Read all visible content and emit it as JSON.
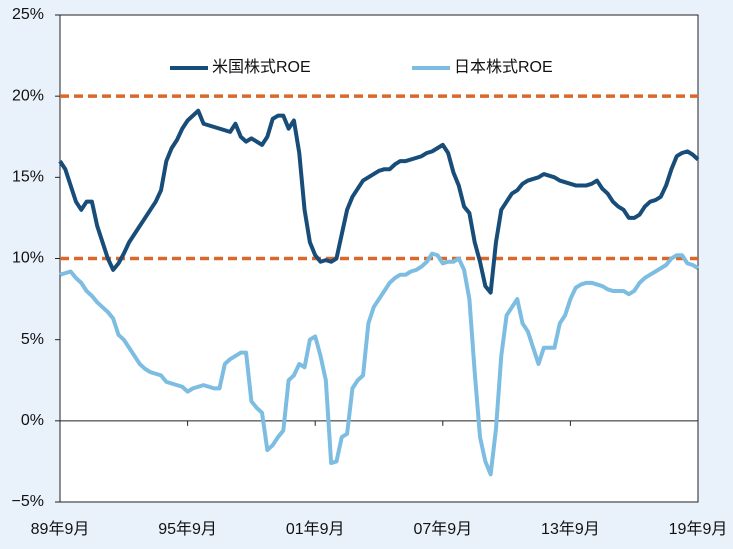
{
  "chart_data": {
    "type": "line",
    "categories": [
      "89年9月",
      null,
      null,
      null,
      null,
      null,
      null,
      null,
      null,
      null,
      null,
      null,
      null,
      null,
      null,
      null,
      null,
      null,
      null,
      null,
      null,
      null,
      null,
      null,
      "95年9月",
      null,
      null,
      null,
      null,
      null,
      null,
      null,
      null,
      null,
      null,
      null,
      null,
      null,
      null,
      null,
      null,
      null,
      null,
      null,
      null,
      null,
      null,
      null,
      "01年9月",
      null,
      null,
      null,
      null,
      null,
      null,
      null,
      null,
      null,
      null,
      null,
      null,
      null,
      null,
      null,
      null,
      null,
      null,
      null,
      null,
      null,
      null,
      null,
      "07年9月",
      null,
      null,
      null,
      null,
      null,
      null,
      null,
      null,
      null,
      null,
      null,
      null,
      null,
      null,
      null,
      null,
      null,
      null,
      null,
      null,
      null,
      null,
      null,
      "13年9月",
      null,
      null,
      null,
      null,
      null,
      null,
      null,
      null,
      null,
      null,
      null,
      null,
      null,
      null,
      null,
      null,
      null,
      null,
      null,
      null,
      null,
      null,
      null,
      "19年9月"
    ],
    "series": [
      {
        "name": "米国株式ROE",
        "color": "#174d78",
        "values": [
          16,
          15.5,
          14.5,
          13.5,
          13,
          13.5,
          13.5,
          12,
          11,
          10,
          9.3,
          9.7,
          10.3,
          11,
          11.5,
          12,
          12.5,
          13,
          13.5,
          14.2,
          16,
          16.8,
          17.3,
          18,
          18.5,
          18.8,
          19.1,
          18.3,
          18.2,
          18.1,
          18,
          17.9,
          17.8,
          18.3,
          17.5,
          17.2,
          17.4,
          17.2,
          17,
          17.5,
          18.6,
          18.8,
          18.8,
          18,
          18.5,
          16.5,
          13,
          11,
          10.2,
          9.8,
          9.9,
          9.8,
          10,
          11.5,
          13,
          13.8,
          14.3,
          14.8,
          15,
          15.2,
          15.4,
          15.5,
          15.5,
          15.8,
          16,
          16,
          16.1,
          16.2,
          16.3,
          16.5,
          16.6,
          16.8,
          17,
          16.5,
          15.3,
          14.5,
          13.2,
          12.8,
          11,
          9.8,
          8.3,
          7.9,
          11,
          13,
          13.5,
          14,
          14.2,
          14.6,
          14.8,
          14.9,
          15,
          15.2,
          15.1,
          15,
          14.8,
          14.7,
          14.6,
          14.5,
          14.5,
          14.5,
          14.6,
          14.8,
          14.3,
          14,
          13.5,
          13.2,
          13,
          12.5,
          12.5,
          12.7,
          13.2,
          13.5,
          13.6,
          13.8,
          14.5,
          15.5,
          16.3,
          16.5,
          16.6,
          16.4,
          16.1
        ]
      },
      {
        "name": "日本株式ROE",
        "color": "#7dbde1",
        "values": [
          9,
          9.1,
          9.2,
          8.8,
          8.5,
          8,
          7.7,
          7.3,
          7,
          6.7,
          6.3,
          5.3,
          5,
          4.5,
          4,
          3.5,
          3.2,
          3,
          2.9,
          2.8,
          2.4,
          2.3,
          2.2,
          2.1,
          1.8,
          2,
          2.1,
          2.2,
          2.1,
          2,
          2,
          3.5,
          3.8,
          4,
          4.2,
          4.2,
          1.2,
          0.8,
          0.5,
          -1.8,
          -1.5,
          -1,
          -0.6,
          2.5,
          2.8,
          3.5,
          3.3,
          5,
          5.2,
          4,
          2.5,
          -2.6,
          -2.5,
          -1,
          -0.8,
          2,
          2.5,
          2.8,
          6,
          7,
          7.5,
          8,
          8.5,
          8.8,
          9,
          9,
          9.2,
          9.3,
          9.5,
          9.8,
          10.3,
          10.2,
          9.7,
          9.8,
          9.8,
          10,
          9.3,
          7.5,
          3,
          -1,
          -2.5,
          -3.3,
          -0.5,
          4,
          6.5,
          7,
          7.5,
          6,
          5.5,
          4.5,
          3.5,
          4.5,
          4.5,
          4.5,
          6,
          6.5,
          7.5,
          8.2,
          8.4,
          8.5,
          8.5,
          8.4,
          8.3,
          8.1,
          8,
          8,
          8,
          7.8,
          8,
          8.5,
          8.8,
          9,
          9.2,
          9.4,
          9.6,
          10,
          10.2,
          10.2,
          9.7,
          9.6,
          9.4
        ]
      }
    ],
    "ylim": [
      -5,
      25
    ],
    "yticks": [
      {
        "value": -5,
        "label": "−5%"
      },
      {
        "value": 0,
        "label": "0%"
      },
      {
        "value": 5,
        "label": "5%"
      },
      {
        "value": 10,
        "label": "10%"
      },
      {
        "value": 15,
        "label": "15%"
      },
      {
        "value": 20,
        "label": "20%"
      },
      {
        "value": 25,
        "label": "25%"
      }
    ],
    "reference_lines": [
      10,
      20
    ],
    "reference_color": "#d9692a",
    "legend": "top"
  }
}
